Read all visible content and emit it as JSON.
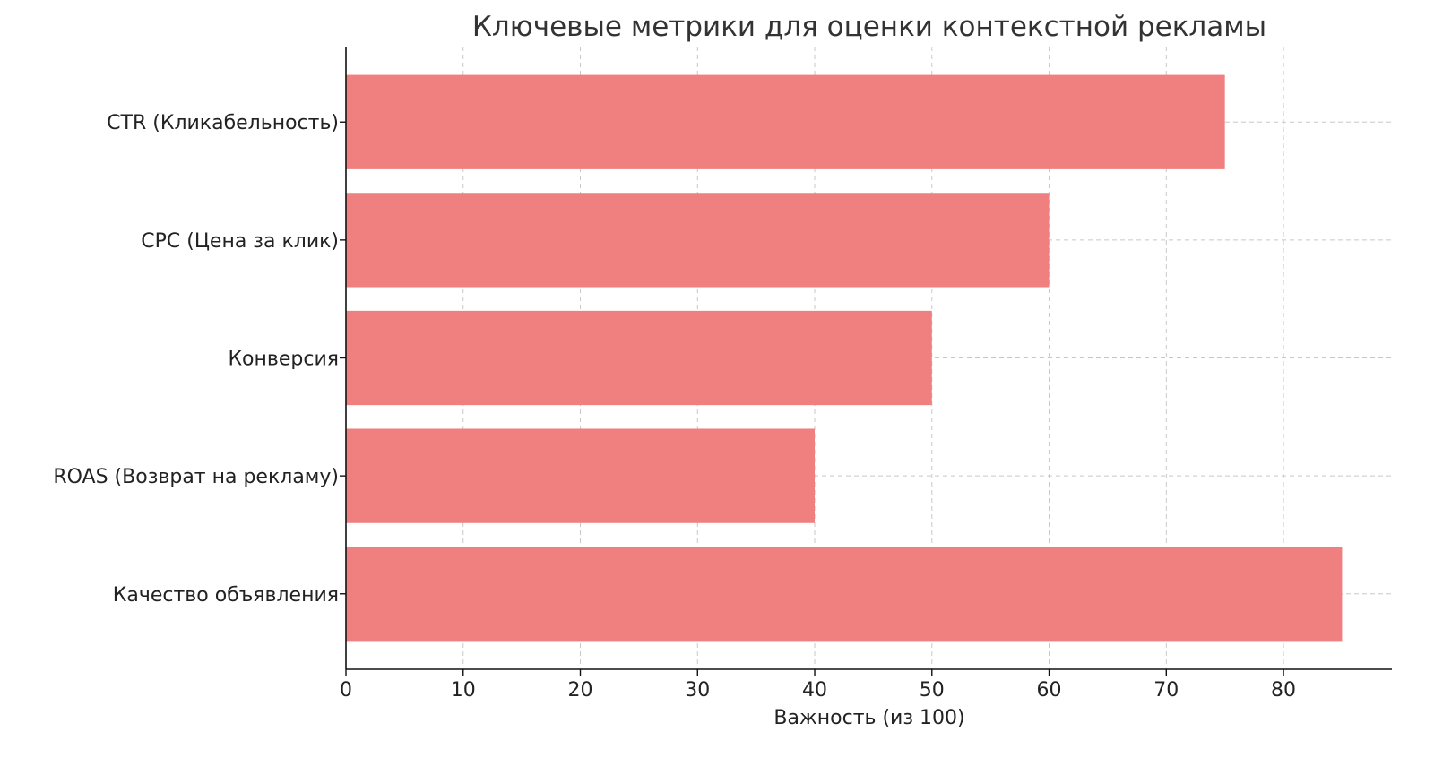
{
  "chart_data": {
    "type": "bar",
    "orientation": "horizontal",
    "title": "Ключевые метрики для оценки контекстной рекламы",
    "xlabel": "Важность (из 100)",
    "ylabel": "",
    "categories": [
      "CTR (Кликабельность)",
      "CPC (Цена за клик)",
      "Конверсия",
      "ROAS (Возврат на рекламу)",
      "Качество объявления"
    ],
    "values": [
      75,
      60,
      50,
      40,
      85
    ],
    "xlim": [
      0,
      89.25
    ],
    "xticks": [
      0,
      10,
      20,
      30,
      40,
      50,
      60,
      70,
      80
    ],
    "grid": true,
    "bar_color": "#F08080"
  }
}
